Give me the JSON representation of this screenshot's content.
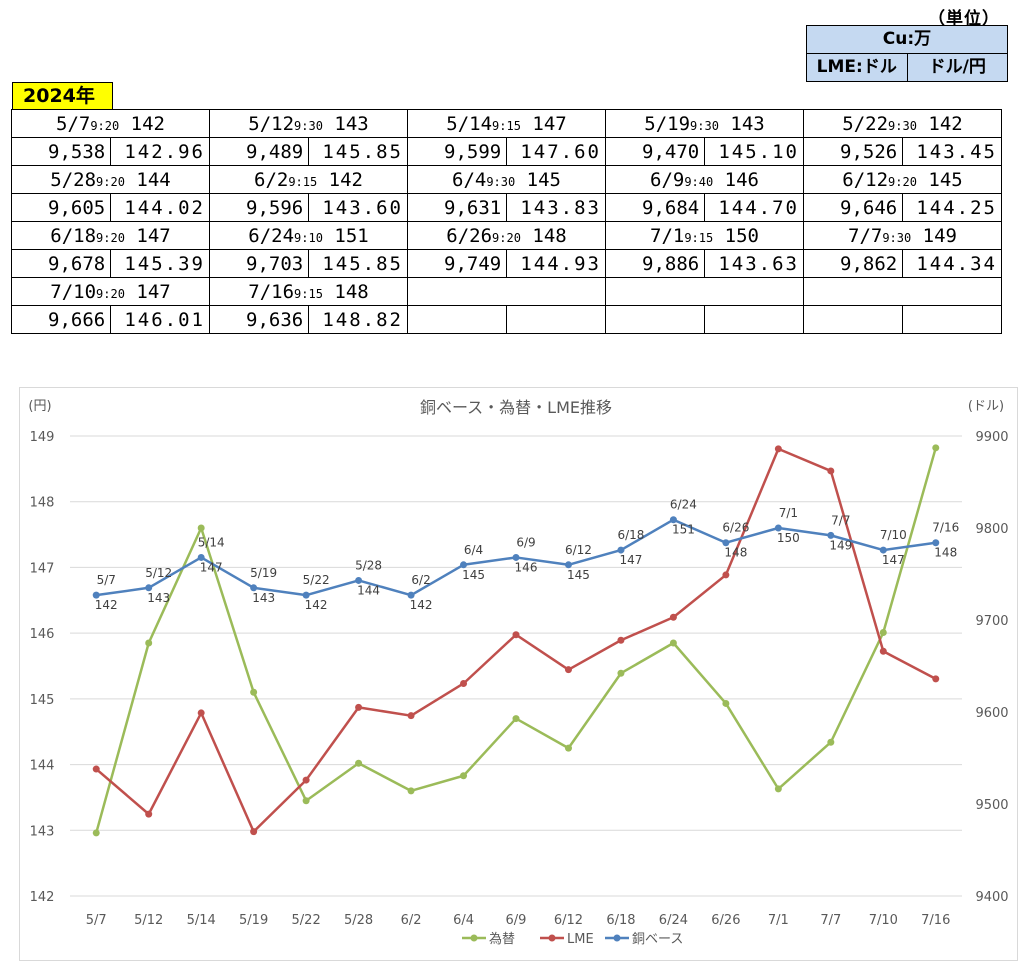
{
  "unit": {
    "title": "（単位）",
    "cu": "Cu:万",
    "lme": "LME:ドル",
    "fx": "ドル/円"
  },
  "year_badge": "2024年",
  "table_rows": [
    [
      {
        "date": "5/7",
        "time": "9:20",
        "base": "142",
        "lme": "9,538",
        "fx": "142.96"
      },
      {
        "date": "5/12",
        "time": "9:30",
        "base": "143",
        "lme": "9,489",
        "fx": "145.85"
      },
      {
        "date": "5/14",
        "time": "9:15",
        "base": "147",
        "lme": "9,599",
        "fx": "147.60"
      },
      {
        "date": "5/19",
        "time": "9:30",
        "base": "143",
        "lme": "9,470",
        "fx": "145.10"
      },
      {
        "date": "5/22",
        "time": "9:30",
        "base": "142",
        "lme": "9,526",
        "fx": "143.45"
      }
    ],
    [
      {
        "date": "5/28",
        "time": "9:20",
        "base": "144",
        "lme": "9,605",
        "fx": "144.02"
      },
      {
        "date": "6/2",
        "time": "9:15",
        "base": "142",
        "lme": "9,596",
        "fx": "143.60"
      },
      {
        "date": "6/4",
        "time": "9:30",
        "base": "145",
        "lme": "9,631",
        "fx": "143.83"
      },
      {
        "date": "6/9",
        "time": "9:40",
        "base": "146",
        "lme": "9,684",
        "fx": "144.70"
      },
      {
        "date": "6/12",
        "time": "9:20",
        "base": "145",
        "lme": "9,646",
        "fx": "144.25"
      }
    ],
    [
      {
        "date": "6/18",
        "time": "9:20",
        "base": "147",
        "lme": "9,678",
        "fx": "145.39"
      },
      {
        "date": "6/24",
        "time": "9:10",
        "base": "151",
        "lme": "9,703",
        "fx": "145.85"
      },
      {
        "date": "6/26",
        "time": "9:20",
        "base": "148",
        "lme": "9,749",
        "fx": "144.93"
      },
      {
        "date": "7/1",
        "time": "9:15",
        "base": "150",
        "lme": "9,886",
        "fx": "143.63"
      },
      {
        "date": "7/7",
        "time": "9:30",
        "base": "149",
        "lme": "9,862",
        "fx": "144.34"
      }
    ],
    [
      {
        "date": "7/10",
        "time": "9:20",
        "base": "147",
        "lme": "9,666",
        "fx": "146.01"
      },
      {
        "date": "7/16",
        "time": "9:15",
        "base": "148",
        "lme": "9,636",
        "fx": "148.82"
      },
      {
        "date": "",
        "time": "",
        "base": "",
        "lme": "",
        "fx": ""
      },
      {
        "date": "",
        "time": "",
        "base": "",
        "lme": "",
        "fx": ""
      },
      {
        "date": "",
        "time": "",
        "base": "",
        "lme": "",
        "fx": ""
      }
    ]
  ],
  "chart_data": {
    "type": "line",
    "title": "銅ベース・為替・LME推移",
    "y_left_label": "(円)",
    "y_right_label": "(ドル)",
    "y_left_range": [
      142,
      149
    ],
    "y_left_ticks": [
      142,
      143,
      144,
      145,
      146,
      147,
      148,
      149
    ],
    "y_right_range": [
      9400,
      9900
    ],
    "y_right_ticks": [
      9400,
      9500,
      9600,
      9700,
      9800,
      9900
    ],
    "categories": [
      "5/7",
      "5/12",
      "5/14",
      "5/19",
      "5/22",
      "5/28",
      "6/2",
      "6/4",
      "6/9",
      "6/12",
      "6/18",
      "6/24",
      "6/26",
      "7/1",
      "7/7",
      "7/10",
      "7/16"
    ],
    "legend_position": "bottom",
    "series": [
      {
        "name": "為替",
        "axis": "left",
        "color": "#9bbb59",
        "values": [
          142.96,
          145.85,
          147.6,
          145.1,
          143.45,
          144.02,
          143.6,
          143.83,
          144.7,
          144.25,
          145.39,
          145.85,
          144.93,
          143.63,
          144.34,
          146.01,
          148.82
        ]
      },
      {
        "name": "LME",
        "axis": "right",
        "color": "#c0504d",
        "values": [
          9538,
          9489,
          9599,
          9470,
          9526,
          9605,
          9596,
          9631,
          9684,
          9646,
          9678,
          9703,
          9749,
          9886,
          9862,
          9666,
          9636
        ]
      },
      {
        "name": "銅ベース",
        "axis": "right",
        "color": "#4f81bd",
        "values": [
          9727,
          9735,
          9768,
          9735,
          9727,
          9743,
          9727,
          9760,
          9768,
          9760,
          9776,
          9809,
          9784,
          9800,
          9792,
          9776,
          9784
        ],
        "labels": [
          [
            "5/7",
            "142"
          ],
          [
            "5/12",
            "143"
          ],
          [
            "5/14",
            "147"
          ],
          [
            "5/19",
            "143"
          ],
          [
            "5/22",
            "142"
          ],
          [
            "5/28",
            "144"
          ],
          [
            "6/2",
            "142"
          ],
          [
            "6/4",
            "145"
          ],
          [
            "6/9",
            "146"
          ],
          [
            "6/12",
            "145"
          ],
          [
            "6/18",
            "147"
          ],
          [
            "6/24",
            "151"
          ],
          [
            "6/26",
            "148"
          ],
          [
            "7/1",
            "150"
          ],
          [
            "7/7",
            "149"
          ],
          [
            "7/10",
            "147"
          ],
          [
            "7/16",
            "148"
          ]
        ]
      }
    ]
  }
}
